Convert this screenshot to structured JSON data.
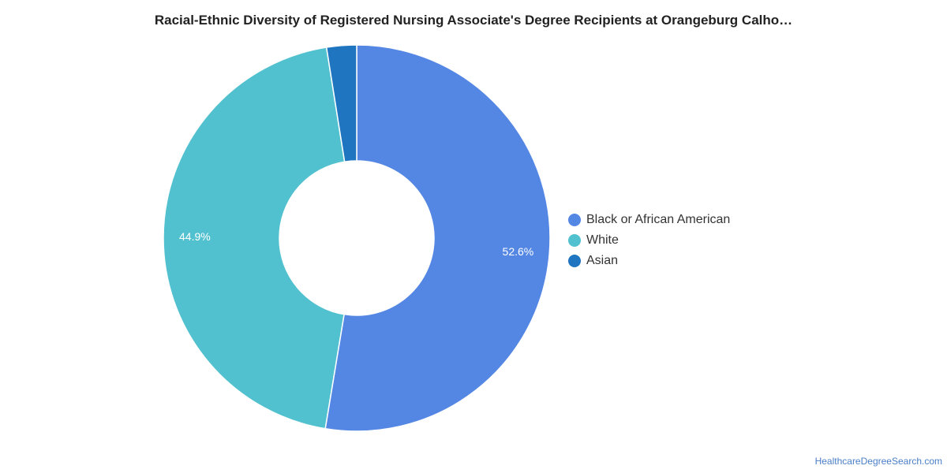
{
  "chart_data": {
    "type": "pie",
    "variant": "donut",
    "title": "Racial-Ethnic Diversity of Registered Nursing Associate's Degree Recipients at Orangeburg Calho…",
    "series": [
      {
        "name": "Black or African American",
        "value": 52.6,
        "label": "52.6%",
        "color": "#5486e4"
      },
      {
        "name": "White",
        "value": 44.9,
        "label": "44.9%",
        "color": "#52c1cf"
      },
      {
        "name": "Asian",
        "value": 2.5,
        "label": "",
        "color": "#1f75bf"
      }
    ],
    "legend_position": "right"
  },
  "watermark": "HealthcareDegreeSearch.com"
}
